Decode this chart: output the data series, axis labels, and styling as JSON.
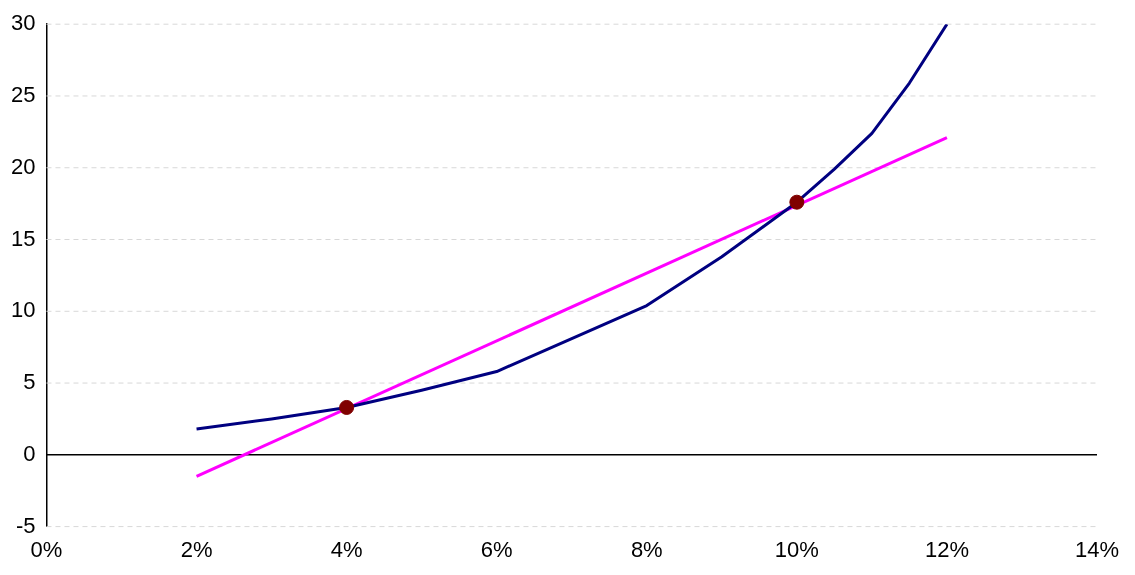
{
  "chart_data": {
    "type": "line",
    "xlim": [
      0,
      14
    ],
    "xticks": [
      {
        "value": 0,
        "label": "0%"
      },
      {
        "value": 2,
        "label": "2%"
      },
      {
        "value": 4,
        "label": "4%"
      },
      {
        "value": 6,
        "label": "6%"
      },
      {
        "value": 8,
        "label": "8%"
      },
      {
        "value": 10,
        "label": "10%"
      },
      {
        "value": 12,
        "label": "12%"
      },
      {
        "value": 14,
        "label": "14%"
      }
    ],
    "ylim": [
      -5,
      30
    ],
    "yticks": [
      -5,
      0,
      5,
      10,
      15,
      20,
      25,
      30
    ],
    "grid": "y",
    "legend": false,
    "series": [
      {
        "color": "#000080",
        "marker": "none",
        "line_style": "solid",
        "x": [
          2,
          3,
          4,
          5,
          6,
          7,
          8,
          9,
          10,
          10.5,
          11,
          11.5,
          12
        ],
        "values": [
          1.8,
          2.5,
          3.3,
          4.5,
          5.8,
          8.1,
          10.4,
          13.8,
          17.6,
          19.9,
          22.4,
          25.9,
          30
        ]
      },
      {
        "color": "#ff00ff",
        "marker": "none",
        "line_style": "solid",
        "x": [
          2,
          12
        ],
        "values": [
          -1.5,
          22.1
        ]
      },
      {
        "type": "scatter",
        "color": "#800000",
        "marker": "circle",
        "x": [
          4,
          10
        ],
        "values": [
          3.3,
          17.6
        ]
      }
    ]
  }
}
